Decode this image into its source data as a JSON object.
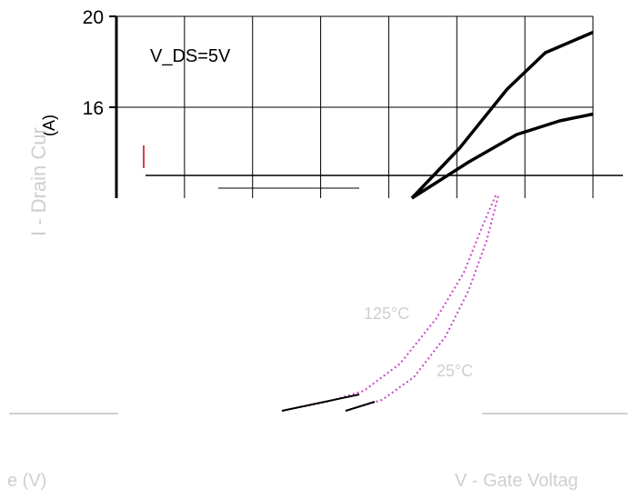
{
  "chart_data": {
    "type": "line",
    "title": "",
    "xlabel": "",
    "ylabel": "(A)",
    "annotation": "V_DS=5V",
    "y_ticks": [
      16,
      20
    ],
    "ylim": [
      12,
      20
    ],
    "x_grid_count": 7,
    "grid": true,
    "series": [
      {
        "points": [
          [
            0.62,
            12
          ],
          [
            0.72,
            14.2
          ],
          [
            0.82,
            16.8
          ],
          [
            0.9,
            18.4
          ],
          [
            1.0,
            19.3
          ]
        ]
      },
      {
        "points": [
          [
            0.62,
            12
          ],
          [
            0.74,
            13.6
          ],
          [
            0.84,
            14.8
          ],
          [
            0.93,
            15.4
          ],
          [
            1.0,
            15.7
          ]
        ]
      }
    ]
  },
  "garbled_fragments": {
    "drain_label": "I - Drain Cur",
    "temp_hot": "125°C",
    "temp_room": "25°C",
    "x_axis_label_partial": "V - Gate Voltag",
    "x_axis_unit_partial": "e (V)"
  },
  "colors": {
    "axis": "#000000",
    "grid": "#000000",
    "curve": "#000000",
    "glitch_curve": "#cc44cc"
  }
}
